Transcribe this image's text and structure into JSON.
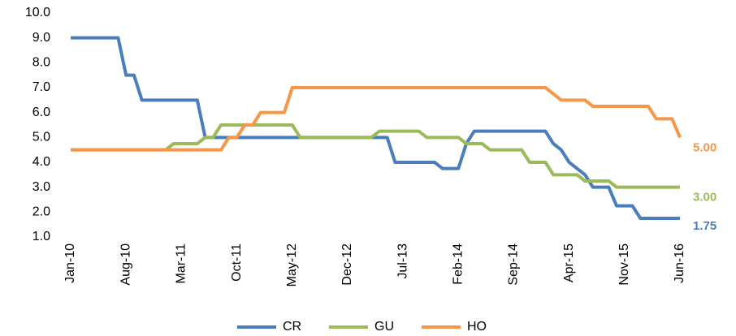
{
  "chart_data": {
    "type": "line",
    "categories": [
      "Jan-10",
      null,
      null,
      null,
      null,
      null,
      null,
      "Aug-10",
      null,
      null,
      null,
      null,
      null,
      null,
      "Mar-11",
      null,
      null,
      null,
      null,
      null,
      null,
      "Oct-11",
      null,
      null,
      null,
      null,
      null,
      null,
      "May-12",
      null,
      null,
      null,
      null,
      null,
      null,
      "Dec-12",
      null,
      null,
      null,
      null,
      null,
      null,
      "Jul-13",
      null,
      null,
      null,
      null,
      null,
      null,
      "Feb-14",
      null,
      null,
      null,
      null,
      null,
      null,
      "Sep-14",
      null,
      null,
      null,
      null,
      null,
      null,
      "Apr-15",
      null,
      null,
      null,
      null,
      null,
      null,
      "Nov-15",
      null,
      null,
      null,
      null,
      null,
      null,
      "Jun-16"
    ],
    "series": [
      {
        "name": "CR",
        "color": "#4a7ebb",
        "values": [
          9,
          9,
          9,
          9,
          9,
          9,
          9,
          7.5,
          7.5,
          6.5,
          6.5,
          6.5,
          6.5,
          6.5,
          6.5,
          6.5,
          6.5,
          5,
          5,
          5,
          5,
          5,
          5,
          5,
          5,
          5,
          5,
          5,
          5,
          5,
          5,
          5,
          5,
          5,
          5,
          5,
          5,
          5,
          5,
          5,
          5,
          4,
          4,
          4,
          4,
          4,
          4,
          3.75,
          3.75,
          3.75,
          4.75,
          5.25,
          5.25,
          5.25,
          5.25,
          5.25,
          5.25,
          5.25,
          5.25,
          5.25,
          5.25,
          4.75,
          4.5,
          4,
          3.75,
          3.5,
          3,
          3,
          3,
          2.25,
          2.25,
          2.25,
          1.75,
          1.75,
          1.75,
          1.75,
          1.75,
          1.75
        ],
        "value_labels": [
          null,
          null,
          null,
          null,
          null,
          null,
          null,
          null,
          null,
          null,
          null,
          null,
          null,
          null,
          null,
          null,
          null,
          null,
          null,
          null,
          null,
          null,
          null,
          null,
          null,
          null,
          null,
          null,
          null,
          null,
          null,
          null,
          null,
          null,
          null,
          null,
          null,
          null,
          null,
          null,
          null,
          null,
          null,
          null,
          null,
          null,
          null,
          null,
          null,
          null,
          null,
          null,
          null,
          null,
          null,
          null,
          null,
          null,
          null,
          null,
          null,
          null,
          null,
          null,
          null,
          null,
          null,
          null,
          null,
          null,
          null,
          null,
          null,
          null,
          null,
          null,
          null,
          "1.75"
        ]
      },
      {
        "name": "GU",
        "color": "#9bbb59",
        "values": [
          4.5,
          4.5,
          4.5,
          4.5,
          4.5,
          4.5,
          4.5,
          4.5,
          4.5,
          4.5,
          4.5,
          4.5,
          4.5,
          4.75,
          4.75,
          4.75,
          4.75,
          5,
          5,
          5.5,
          5.5,
          5.5,
          5.5,
          5.5,
          5.5,
          5.5,
          5.5,
          5.5,
          5.5,
          5,
          5,
          5,
          5,
          5,
          5,
          5,
          5,
          5,
          5,
          5.25,
          5.25,
          5.25,
          5.25,
          5.25,
          5.25,
          5,
          5,
          5,
          5,
          5,
          4.75,
          4.75,
          4.75,
          4.5,
          4.5,
          4.5,
          4.5,
          4.5,
          4,
          4,
          4,
          3.5,
          3.5,
          3.5,
          3.5,
          3.25,
          3.25,
          3.25,
          3.25,
          3,
          3,
          3,
          3,
          3,
          3,
          3,
          3,
          3
        ],
        "value_labels": [
          null,
          null,
          null,
          null,
          null,
          null,
          null,
          null,
          null,
          null,
          null,
          null,
          null,
          null,
          null,
          null,
          null,
          null,
          null,
          null,
          null,
          null,
          null,
          null,
          null,
          null,
          null,
          null,
          null,
          null,
          null,
          null,
          null,
          null,
          null,
          null,
          null,
          null,
          null,
          null,
          null,
          null,
          null,
          null,
          null,
          null,
          null,
          null,
          null,
          null,
          null,
          null,
          null,
          null,
          null,
          null,
          null,
          null,
          null,
          null,
          null,
          null,
          null,
          null,
          null,
          null,
          null,
          null,
          null,
          null,
          null,
          null,
          null,
          null,
          null,
          null,
          null,
          "3.00"
        ]
      },
      {
        "name": "HO",
        "color": "#f79646",
        "values": [
          4.5,
          4.5,
          4.5,
          4.5,
          4.5,
          4.5,
          4.5,
          4.5,
          4.5,
          4.5,
          4.5,
          4.5,
          4.5,
          4.5,
          4.5,
          4.5,
          4.5,
          4.5,
          4.5,
          4.5,
          5,
          5,
          5.5,
          5.5,
          6,
          6,
          6,
          6,
          7,
          7,
          7,
          7,
          7,
          7,
          7,
          7,
          7,
          7,
          7,
          7,
          7,
          7,
          7,
          7,
          7,
          7,
          7,
          7,
          7,
          7,
          7,
          7,
          7,
          7,
          7,
          7,
          7,
          7,
          7,
          7,
          7,
          6.75,
          6.5,
          6.5,
          6.5,
          6.5,
          6.25,
          6.25,
          6.25,
          6.25,
          6.25,
          6.25,
          6.25,
          6.25,
          5.75,
          5.75,
          5.75,
          5
        ],
        "value_labels": [
          null,
          null,
          null,
          null,
          null,
          null,
          null,
          null,
          null,
          null,
          null,
          null,
          null,
          null,
          null,
          null,
          null,
          null,
          null,
          null,
          null,
          null,
          null,
          null,
          null,
          null,
          null,
          null,
          null,
          null,
          null,
          null,
          null,
          null,
          null,
          null,
          null,
          null,
          null,
          null,
          null,
          null,
          null,
          null,
          null,
          null,
          null,
          null,
          null,
          null,
          null,
          null,
          null,
          null,
          null,
          null,
          null,
          null,
          null,
          null,
          null,
          null,
          null,
          null,
          null,
          null,
          null,
          null,
          null,
          null,
          null,
          null,
          null,
          null,
          null,
          null,
          null,
          "5.00"
        ]
      }
    ],
    "ylim": [
      1,
      10
    ],
    "yticks": [
      {
        "value": 1,
        "label": "1.0"
      },
      {
        "value": 2,
        "label": "2.0"
      },
      {
        "value": 3,
        "label": "3.0"
      },
      {
        "value": 4,
        "label": "4.0"
      },
      {
        "value": 5,
        "label": "5.0"
      },
      {
        "value": 6,
        "label": "6.0"
      },
      {
        "value": 7,
        "label": "7.0"
      },
      {
        "value": 8,
        "label": "8.0"
      },
      {
        "value": 9,
        "label": "9.0"
      },
      {
        "value": 10,
        "label": "10.0"
      }
    ],
    "grid": false,
    "legend": "bottom"
  }
}
